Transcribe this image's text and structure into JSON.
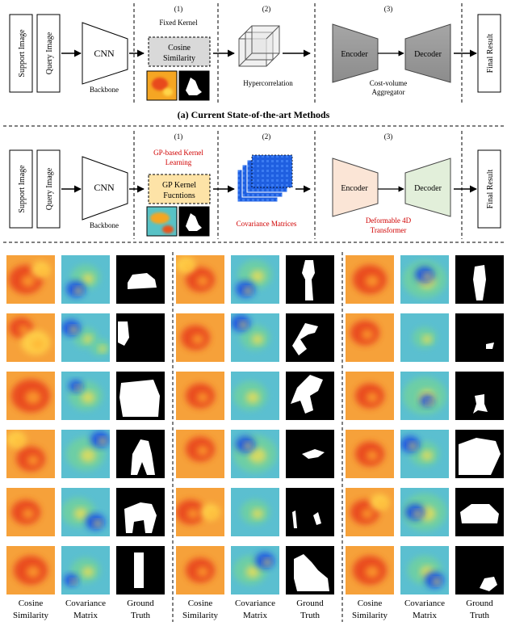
{
  "top_pipeline": {
    "support_image": "Support Image",
    "query_image": "Query Image",
    "cnn": "CNN",
    "backbone": "Backbone",
    "stage1_num": "(1)",
    "stage1_title": "Fixed Kernel",
    "kernel_box_line1": "Cosine",
    "kernel_box_line2": "Similarity",
    "stage2_num": "(2)",
    "stage2_caption": "Hypercorrelation",
    "stage3_num": "(3)",
    "encoder": "Encoder",
    "decoder": "Decoder",
    "aggregator_line1": "Cost-volume",
    "aggregator_line2": "Aggregator",
    "final_result": "Final Result",
    "caption": "(a) Current State-of-the-art Methods"
  },
  "bottom_pipeline": {
    "support_image": "Support Image",
    "query_image": "Query Image",
    "cnn": "CNN",
    "backbone": "Backbone",
    "stage1_num": "(1)",
    "stage1_title_line1": "GP-based Kernel",
    "stage1_title_line2": "Learning",
    "kernel_box_line1": "GP Kernel",
    "kernel_box_line2": "Fucntions",
    "stage2_num": "(2)",
    "stage2_caption": "Covariance Matrices",
    "stage3_num": "(3)",
    "encoder": "Encoder",
    "decoder": "Decoder",
    "transformer_line1": "Deformable  4D",
    "transformer_line2": "Transformer",
    "final_result": "Final Result"
  },
  "colors": {
    "accent_red": "#d00000",
    "fixed_box": "#d9d9d9",
    "gp_box": "#fde3a7",
    "encoder_top": "#9e9e9e",
    "encoder_bottom": "#fbe5d6",
    "decoder_bottom": "#e2efda",
    "warm_map": "#f39a2a",
    "cool_map": "#2b6fe0",
    "mask_bg": "#000000",
    "mask_fg": "#ffffff"
  },
  "grid": {
    "column_labels": [
      {
        "line1": "Cosine",
        "line2": "Similarity"
      },
      {
        "line1": "Covariance",
        "line2": "Matrix"
      },
      {
        "line1": "Ground",
        "line2": "Truth"
      }
    ],
    "groups": [
      {
        "rows": [
          {
            "cos_blobs": [
              [
                0.4,
                0.5,
                0.35
              ],
              [
                0.7,
                0.3,
                0.2
              ]
            ],
            "cov_blobs": [
              [
                0.5,
                0.45,
                0.3
              ],
              [
                0.3,
                0.7,
                0.2
              ]
            ],
            "mask": "car"
          },
          {
            "cos_blobs": [
              [
                0.3,
                0.3,
                0.25
              ],
              [
                0.6,
                0.6,
                0.3
              ]
            ],
            "cov_blobs": [
              [
                0.5,
                0.5,
                0.25
              ],
              [
                0.2,
                0.3,
                0.2
              ],
              [
                0.8,
                0.7,
                0.2
              ]
            ],
            "mask": "partial"
          },
          {
            "cos_blobs": [
              [
                0.5,
                0.5,
                0.4
              ]
            ],
            "cov_blobs": [
              [
                0.5,
                0.5,
                0.35
              ],
              [
                0.3,
                0.3,
                0.15
              ]
            ],
            "mask": "car_big"
          },
          {
            "cos_blobs": [
              [
                0.5,
                0.6,
                0.3
              ],
              [
                0.2,
                0.2,
                0.2
              ]
            ],
            "cov_blobs": [
              [
                0.5,
                0.5,
                0.4
              ],
              [
                0.8,
                0.2,
                0.2
              ]
            ],
            "mask": "horse"
          },
          {
            "cos_blobs": [
              [
                0.4,
                0.5,
                0.3
              ]
            ],
            "cov_blobs": [
              [
                0.35,
                0.5,
                0.35
              ],
              [
                0.7,
                0.7,
                0.2
              ]
            ],
            "mask": "dog"
          },
          {
            "cos_blobs": [
              [
                0.5,
                0.5,
                0.35
              ]
            ],
            "cov_blobs": [
              [
                0.5,
                0.5,
                0.3
              ],
              [
                0.2,
                0.7,
                0.15
              ]
            ],
            "mask": "bottle"
          }
        ]
      },
      {
        "rows": [
          {
            "cos_blobs": [
              [
                0.5,
                0.5,
                0.3
              ],
              [
                0.2,
                0.2,
                0.2
              ]
            ],
            "cov_blobs": [
              [
                0.5,
                0.4,
                0.35
              ],
              [
                0.3,
                0.7,
                0.2
              ]
            ],
            "mask": "person"
          },
          {
            "cos_blobs": [
              [
                0.4,
                0.5,
                0.3
              ]
            ],
            "cov_blobs": [
              [
                0.5,
                0.5,
                0.3
              ],
              [
                0.2,
                0.2,
                0.2
              ]
            ],
            "mask": "rider"
          },
          {
            "cos_blobs": [
              [
                0.5,
                0.5,
                0.3
              ]
            ],
            "cov_blobs": [
              [
                0.4,
                0.5,
                0.35
              ]
            ],
            "mask": "jump"
          },
          {
            "cos_blobs": [
              [
                0.5,
                0.4,
                0.3
              ]
            ],
            "cov_blobs": [
              [
                0.5,
                0.5,
                0.45
              ],
              [
                0.3,
                0.3,
                0.2
              ]
            ],
            "mask": "bird"
          },
          {
            "cos_blobs": [
              [
                0.3,
                0.5,
                0.3
              ],
              [
                0.7,
                0.5,
                0.2
              ]
            ],
            "cov_blobs": [
              [
                0.5,
                0.5,
                0.3
              ]
            ],
            "mask": "people"
          },
          {
            "cos_blobs": [
              [
                0.5,
                0.5,
                0.3
              ]
            ],
            "cov_blobs": [
              [
                0.4,
                0.5,
                0.35
              ],
              [
                0.7,
                0.3,
                0.2
              ]
            ],
            "mask": "group"
          }
        ]
      },
      {
        "rows": [
          {
            "cos_blobs": [
              [
                0.5,
                0.5,
                0.35
              ]
            ],
            "cov_blobs": [
              [
                0.5,
                0.5,
                0.45
              ],
              [
                0.5,
                0.4,
                0.2
              ]
            ],
            "mask": "standing"
          },
          {
            "cos_blobs": [
              [
                0.4,
                0.4,
                0.3
              ]
            ],
            "cov_blobs": [
              [
                0.5,
                0.5,
                0.25
              ]
            ],
            "mask": "small"
          },
          {
            "cos_blobs": [
              [
                0.5,
                0.5,
                0.3
              ]
            ],
            "cov_blobs": [
              [
                0.5,
                0.5,
                0.45
              ],
              [
                0.55,
                0.6,
                0.15
              ]
            ],
            "mask": "chair"
          },
          {
            "cos_blobs": [
              [
                0.5,
                0.5,
                0.3
              ]
            ],
            "cov_blobs": [
              [
                0.5,
                0.5,
                0.3
              ],
              [
                0.2,
                0.3,
                0.2
              ]
            ],
            "mask": "sofa"
          },
          {
            "cos_blobs": [
              [
                0.4,
                0.5,
                0.3
              ],
              [
                0.7,
                0.3,
                0.2
              ]
            ],
            "cov_blobs": [
              [
                0.5,
                0.5,
                0.45
              ],
              [
                0.3,
                0.5,
                0.2
              ]
            ],
            "mask": "car2"
          },
          {
            "cos_blobs": [
              [
                0.5,
                0.5,
                0.35
              ]
            ],
            "cov_blobs": [
              [
                0.5,
                0.5,
                0.35
              ],
              [
                0.7,
                0.7,
                0.2
              ]
            ],
            "mask": "bike"
          }
        ]
      }
    ]
  }
}
